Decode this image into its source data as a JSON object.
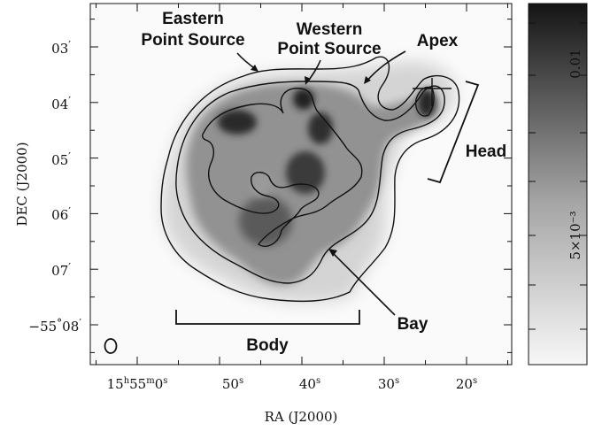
{
  "chart_data": {
    "type": "heatmap",
    "title": "",
    "xlabel": "RA (J2000)",
    "ylabel": "DEC (J2000)",
    "x_ticks": [
      {
        "sup_h": "h",
        "sup_m": "m",
        "sup_s": "s",
        "base_h": "15",
        "base_m": "55",
        "base_s": "0",
        "ra_s": 60
      },
      {
        "text": "50",
        "sup": "s",
        "ra_s": 50
      },
      {
        "text": "40",
        "sup": "s",
        "ra_s": 40
      },
      {
        "text": "30",
        "sup": "s",
        "ra_s": 30
      },
      {
        "text": "20",
        "sup": "s",
        "ra_s": 20
      }
    ],
    "y_ticks": [
      {
        "text": "03",
        "sup": "′",
        "dec_arcmin": 3
      },
      {
        "text": "04",
        "sup": "′",
        "dec_arcmin": 4
      },
      {
        "text": "05",
        "sup": "′",
        "dec_arcmin": 5
      },
      {
        "text": "06",
        "sup": "′",
        "dec_arcmin": 6
      },
      {
        "text": "07",
        "sup": "′",
        "dec_arcmin": 7
      },
      {
        "text": "−55",
        "sup": "°",
        "text2": "08",
        "sup2": "′",
        "dec_arcmin": 8
      }
    ],
    "colorbar": {
      "labels": [
        "0.01",
        "5×10⁻³"
      ],
      "colormap": "white-to-black"
    },
    "annotations": [
      {
        "id": "eastern",
        "lines": [
          "Eastern",
          "Point Source"
        ]
      },
      {
        "id": "western",
        "lines": [
          "Western",
          "Point Source"
        ]
      },
      {
        "id": "apex",
        "lines": [
          "Apex"
        ]
      },
      {
        "id": "head",
        "lines": [
          "Head"
        ]
      },
      {
        "id": "bay",
        "lines": [
          "Bay"
        ]
      },
      {
        "id": "body",
        "lines": [
          "Body"
        ]
      }
    ],
    "contour_levels": 3,
    "beam": "ellipse"
  }
}
